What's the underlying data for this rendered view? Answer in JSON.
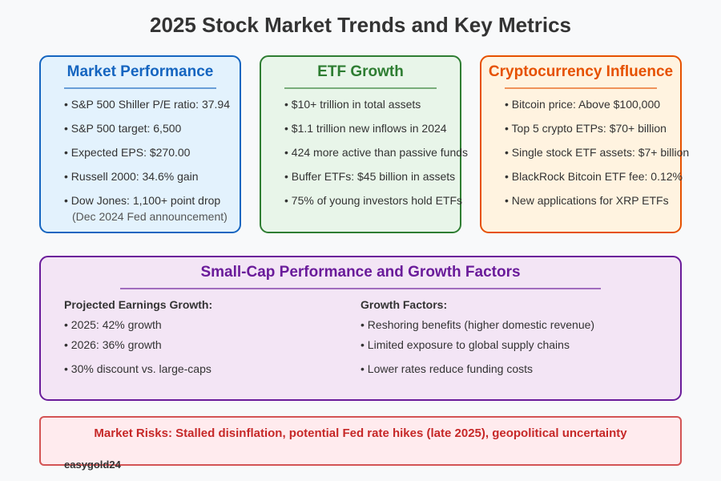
{
  "title": "2025 Stock Market Trends and Key Metrics",
  "market": {
    "title": "Market Performance",
    "items": [
      "• S&P 500 Shiller P/E ratio: 37.94",
      "• S&P 500 target: 6,500",
      "• Expected EPS: $270.00",
      "• Russell 2000: 34.6% gain",
      "• Dow Jones: 1,100+ point drop"
    ],
    "note": "(Dec 2024 Fed announcement)"
  },
  "etf": {
    "title": "ETF Growth",
    "items": [
      "• $10+ trillion in total assets",
      "• $1.1 trillion new inflows in 2024",
      "• 424 more active than passive funds",
      "• Buffer ETFs: $45 billion in assets",
      "• 75% of young investors hold ETFs"
    ]
  },
  "crypto": {
    "title": "Cryptocurrency Influence",
    "items": [
      "• Bitcoin price: Above $100,000",
      "• Top 5 crypto ETPs: $70+ billion",
      "• Single stock ETF assets: $7+ billion",
      "• BlackRock Bitcoin ETF fee: 0.12%",
      "• New applications for XRP ETFs"
    ]
  },
  "smallcap": {
    "title": "Small-Cap Performance and Growth Factors",
    "left_header": "Projected Earnings Growth:",
    "left_items": [
      "• 2025: 42% growth",
      "• 2026: 36% growth",
      "• 30% discount vs. large-caps"
    ],
    "right_header": "Growth Factors:",
    "right_items": [
      "• Reshoring benefits (higher domestic revenue)",
      "• Limited exposure to global supply chains",
      "• Lower rates reduce funding costs"
    ]
  },
  "risks": "Market Risks: Stalled disinflation, potential Fed rate hikes (late 2025), geopolitical uncertainty",
  "watermark": "easygold24",
  "colors": {
    "blue": "#1565c0",
    "green": "#2e7d32",
    "orange": "#e65100",
    "purple": "#6a1b9a",
    "red": "#c62828"
  }
}
